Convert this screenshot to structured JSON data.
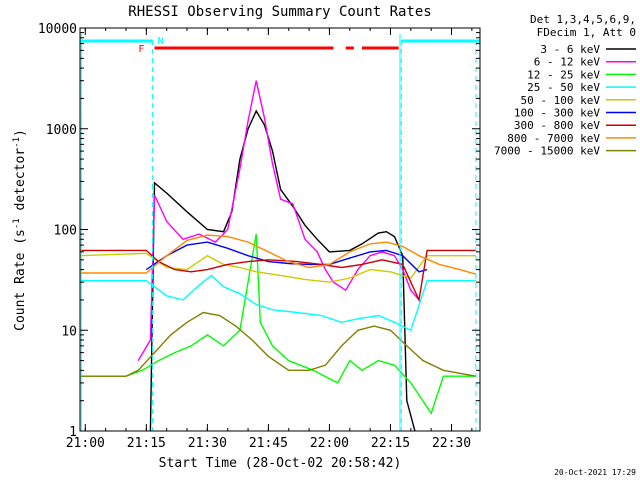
{
  "chart_data": {
    "type": "line",
    "title": "RHESSI Observing Summary Count Rates",
    "xlabel": "Start Time (28-Oct-02 20:58:42)",
    "ylabel": "Count Rate (s⁻¹ detector⁻¹)",
    "ylabel_parts": [
      "Count Rate (s",
      "-1",
      " detector",
      "-1",
      ")"
    ],
    "yscale": "log",
    "ylim": [
      1,
      10000
    ],
    "xlim": [
      "20:58:42",
      "22:37:00"
    ],
    "x_ticks": [
      "21:00",
      "21:15",
      "21:30",
      "21:45",
      "22:00",
      "22:15",
      "22:30"
    ],
    "y_ticks": [
      "1",
      "10",
      "100",
      "1000",
      "10000"
    ],
    "legend_header": [
      "Det 1,3,4,5,6,9,",
      "FDecim 1, Att 0"
    ],
    "legend_position": "right",
    "timestamp": "20-Oct-2021 17:29",
    "flags": {
      "night_line_segments": [
        [
          "20:58:42",
          "21:16:30"
        ],
        [
          "22:17:40",
          "22:37:00"
        ]
      ],
      "night_line_color": "#00ffff",
      "saa_boundaries": [
        "21:16:30",
        "22:17:40",
        "22:36:00"
      ],
      "night_solid_boundaries": [
        "20:59:00",
        "22:17:20"
      ],
      "flare_segments": [
        [
          "21:17:00",
          "22:01:00"
        ],
        [
          "22:04:00",
          "22:06:00"
        ],
        [
          "22:08:00",
          "22:17:00"
        ]
      ],
      "flare_color": "#ff0000",
      "label_F": "F",
      "label_N": "N",
      "label_F_time": "21:15:30",
      "label_N_time": "21:17:00"
    },
    "series": [
      {
        "name": "3 - 6 keV",
        "color": "#000000",
        "points": [
          [
            "21:16:00",
            1
          ],
          [
            "21:17:00",
            290
          ],
          [
            "21:20:00",
            230
          ],
          [
            "21:25:00",
            150
          ],
          [
            "21:30:00",
            100
          ],
          [
            "21:34:00",
            95
          ],
          [
            "21:36:00",
            150
          ],
          [
            "21:38:00",
            500
          ],
          [
            "21:40:00",
            1000
          ],
          [
            "21:42:00",
            1500
          ],
          [
            "21:44:00",
            1100
          ],
          [
            "21:46:00",
            600
          ],
          [
            "21:48:00",
            250
          ],
          [
            "21:51:00",
            170
          ],
          [
            "21:54:00",
            110
          ],
          [
            "21:57:00",
            80
          ],
          [
            "22:00:00",
            60
          ],
          [
            "22:05:00",
            62
          ],
          [
            "22:08:00",
            72
          ],
          [
            "22:12:00",
            92
          ],
          [
            "22:14:00",
            95
          ],
          [
            "22:16:00",
            85
          ],
          [
            "22:18:00",
            55
          ],
          [
            "22:19:00",
            2
          ],
          [
            "22:21:00",
            1
          ]
        ]
      },
      {
        "name": "6 - 12 keV",
        "color": "#ff00ff",
        "points": [
          [
            "21:13:00",
            5
          ],
          [
            "21:16:00",
            8
          ],
          [
            "21:17:00",
            220
          ],
          [
            "21:20:00",
            120
          ],
          [
            "21:24:00",
            80
          ],
          [
            "21:28:00",
            90
          ],
          [
            "21:32:00",
            75
          ],
          [
            "21:35:00",
            100
          ],
          [
            "21:38:00",
            400
          ],
          [
            "21:40:00",
            1200
          ],
          [
            "21:42:00",
            3000
          ],
          [
            "21:44:00",
            1300
          ],
          [
            "21:46:00",
            450
          ],
          [
            "21:48:00",
            200
          ],
          [
            "21:51:00",
            180
          ],
          [
            "21:54:00",
            80
          ],
          [
            "21:57:00",
            60
          ],
          [
            "21:59:00",
            40
          ],
          [
            "22:01:00",
            30
          ],
          [
            "22:04:00",
            25
          ],
          [
            "22:07:00",
            40
          ],
          [
            "22:10:00",
            55
          ],
          [
            "22:13:00",
            60
          ],
          [
            "22:16:00",
            55
          ],
          [
            "22:18:00",
            40
          ],
          [
            "22:20:00",
            25
          ],
          [
            "22:22:00",
            20
          ]
        ]
      },
      {
        "name": "12 - 25 keV",
        "color": "#00ff00",
        "points": [
          [
            "20:58:42",
            3.5
          ],
          [
            "21:10:00",
            3.5
          ],
          [
            "21:14:00",
            4
          ],
          [
            "21:18:00",
            5
          ],
          [
            "21:22:00",
            6
          ],
          [
            "21:26:00",
            7
          ],
          [
            "21:30:00",
            9
          ],
          [
            "21:34:00",
            7
          ],
          [
            "21:38:00",
            10
          ],
          [
            "21:42:00",
            90
          ],
          [
            "21:43:00",
            12
          ],
          [
            "21:46:00",
            7
          ],
          [
            "21:50:00",
            5
          ],
          [
            "21:56:00",
            4
          ],
          [
            "22:02:00",
            3
          ],
          [
            "22:05:00",
            5
          ],
          [
            "22:08:00",
            4
          ],
          [
            "22:12:00",
            5
          ],
          [
            "22:16:00",
            4.5
          ],
          [
            "22:20:00",
            3
          ],
          [
            "22:25:00",
            1.5
          ],
          [
            "22:28:00",
            3.5
          ],
          [
            "22:36:00",
            3.5
          ]
        ]
      },
      {
        "name": "25 - 50 keV",
        "color": "#00ffff",
        "points": [
          [
            "20:58:42",
            31
          ],
          [
            "21:15:00",
            31
          ],
          [
            "21:20:00",
            22
          ],
          [
            "21:24:00",
            20
          ],
          [
            "21:28:00",
            28
          ],
          [
            "21:31:00",
            35
          ],
          [
            "21:34:00",
            27
          ],
          [
            "21:38:00",
            23
          ],
          [
            "21:42:00",
            18
          ],
          [
            "21:46:00",
            16
          ],
          [
            "21:52:00",
            15
          ],
          [
            "21:58:00",
            14
          ],
          [
            "22:03:00",
            12
          ],
          [
            "22:07:00",
            13
          ],
          [
            "22:12:00",
            14
          ],
          [
            "22:16:00",
            12
          ],
          [
            "22:20:00",
            10
          ],
          [
            "22:24:00",
            31
          ],
          [
            "22:36:00",
            31
          ]
        ]
      },
      {
        "name": "50 - 100 keV",
        "color": "#cccc00",
        "points": [
          [
            "20:58:42",
            55
          ],
          [
            "21:15:00",
            58
          ],
          [
            "21:20:00",
            42
          ],
          [
            "21:25:00",
            40
          ],
          [
            "21:30:00",
            55
          ],
          [
            "21:34:00",
            45
          ],
          [
            "21:38:00",
            42
          ],
          [
            "21:42:00",
            38
          ],
          [
            "21:48:00",
            35
          ],
          [
            "21:54:00",
            32
          ],
          [
            "22:00:00",
            30
          ],
          [
            "22:05:00",
            33
          ],
          [
            "22:10:00",
            40
          ],
          [
            "22:15:00",
            38
          ],
          [
            "22:20:00",
            33
          ],
          [
            "22:24:00",
            55
          ],
          [
            "22:36:00",
            55
          ]
        ]
      },
      {
        "name": "100 - 300 keV",
        "color": "#0000ff",
        "points": [
          [
            "21:15:00",
            40
          ],
          [
            "21:20:00",
            55
          ],
          [
            "21:25:00",
            70
          ],
          [
            "21:30:00",
            75
          ],
          [
            "21:35:00",
            65
          ],
          [
            "21:40:00",
            55
          ],
          [
            "21:45:00",
            48
          ],
          [
            "21:50:00",
            46
          ],
          [
            "21:55:00",
            45
          ],
          [
            "22:00:00",
            45
          ],
          [
            "22:05:00",
            52
          ],
          [
            "22:10:00",
            60
          ],
          [
            "22:14:00",
            62
          ],
          [
            "22:18:00",
            55
          ],
          [
            "22:22:00",
            38
          ],
          [
            "22:24:00",
            40
          ]
        ]
      },
      {
        "name": "300 - 800 keV",
        "color": "#cc0000",
        "points": [
          [
            "20:58:42",
            62
          ],
          [
            "21:15:00",
            62
          ],
          [
            "21:18:00",
            48
          ],
          [
            "21:22:00",
            40
          ],
          [
            "21:26:00",
            38
          ],
          [
            "21:30:00",
            40
          ],
          [
            "21:35:00",
            45
          ],
          [
            "21:40:00",
            48
          ],
          [
            "21:45:00",
            50
          ],
          [
            "21:52:00",
            48
          ],
          [
            "21:58:00",
            45
          ],
          [
            "22:03:00",
            42
          ],
          [
            "22:08:00",
            45
          ],
          [
            "22:13:00",
            50
          ],
          [
            "22:18:00",
            45
          ],
          [
            "22:22:00",
            20
          ],
          [
            "22:24:00",
            62
          ],
          [
            "22:36:00",
            62
          ]
        ]
      },
      {
        "name": "800 - 7000 keV",
        "color": "#ff8800",
        "points": [
          [
            "20:58:42",
            37
          ],
          [
            "21:15:00",
            37
          ],
          [
            "21:20:00",
            55
          ],
          [
            "21:25:00",
            78
          ],
          [
            "21:30:00",
            88
          ],
          [
            "21:35:00",
            85
          ],
          [
            "21:40:00",
            75
          ],
          [
            "21:45:00",
            60
          ],
          [
            "21:50:00",
            48
          ],
          [
            "21:55:00",
            42
          ],
          [
            "22:00:00",
            45
          ],
          [
            "22:05:00",
            60
          ],
          [
            "22:10:00",
            72
          ],
          [
            "22:14:00",
            75
          ],
          [
            "22:18:00",
            68
          ],
          [
            "22:22:00",
            55
          ],
          [
            "22:27:00",
            45
          ],
          [
            "22:32:00",
            40
          ],
          [
            "22:36:00",
            36
          ]
        ]
      },
      {
        "name": "7000 - 15000 keV",
        "color": "#808000",
        "points": [
          [
            "20:58:42",
            3.5
          ],
          [
            "21:10:00",
            3.5
          ],
          [
            "21:13:00",
            4
          ],
          [
            "21:17:00",
            6
          ],
          [
            "21:21:00",
            9
          ],
          [
            "21:25:00",
            12
          ],
          [
            "21:29:00",
            15
          ],
          [
            "21:33:00",
            14
          ],
          [
            "21:37:00",
            11
          ],
          [
            "21:41:00",
            8
          ],
          [
            "21:45:00",
            5.5
          ],
          [
            "21:50:00",
            4
          ],
          [
            "21:55:00",
            4
          ],
          [
            "21:59:00",
            4.5
          ],
          [
            "22:03:00",
            7
          ],
          [
            "22:07:00",
            10
          ],
          [
            "22:11:00",
            11
          ],
          [
            "22:15:00",
            10
          ],
          [
            "22:19:00",
            7
          ],
          [
            "22:23:00",
            5
          ],
          [
            "22:28:00",
            4
          ],
          [
            "22:36:00",
            3.5
          ]
        ]
      }
    ]
  }
}
